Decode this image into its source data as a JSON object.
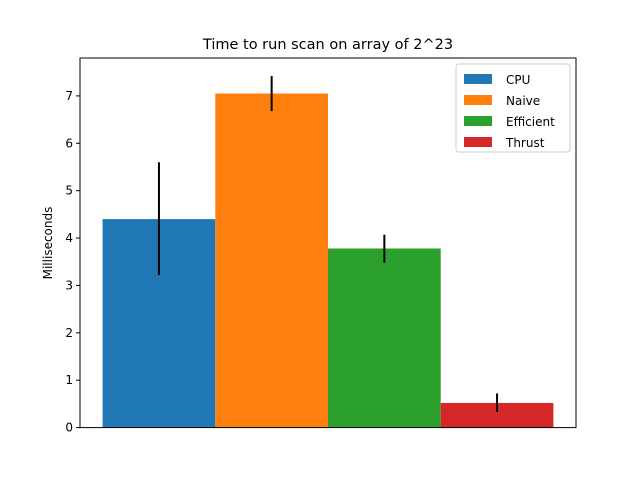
{
  "chart_data": {
    "type": "bar",
    "title": "Time to run scan on array of 2^23",
    "xlabel": "",
    "ylabel": "Milliseconds",
    "ylim": [
      0,
      7.8
    ],
    "yticks": [
      0,
      1,
      2,
      3,
      4,
      5,
      6,
      7
    ],
    "grid": false,
    "legend_position": "top-right",
    "series": [
      {
        "name": "CPU",
        "value": 4.4,
        "error": [
          3.22,
          5.6
        ],
        "color": "#1f77b4"
      },
      {
        "name": "Naive",
        "value": 7.05,
        "error": [
          6.68,
          7.42
        ],
        "color": "#ff7f0e"
      },
      {
        "name": "Efficient",
        "value": 3.78,
        "error": [
          3.48,
          4.07
        ],
        "color": "#2ca02c"
      },
      {
        "name": "Thrust",
        "value": 0.52,
        "error": [
          0.33,
          0.72
        ],
        "color": "#d62728"
      }
    ]
  }
}
